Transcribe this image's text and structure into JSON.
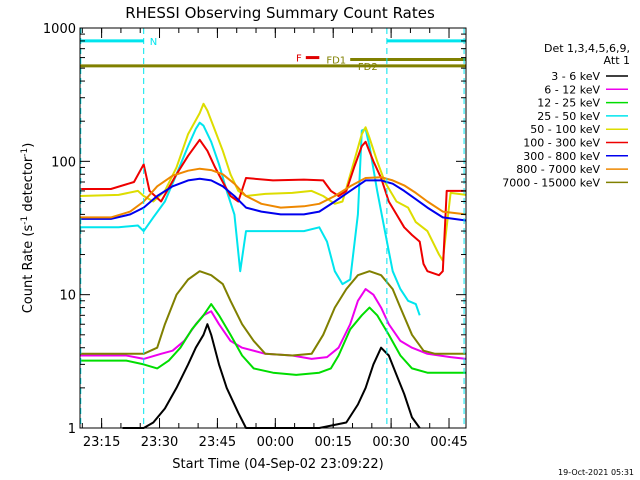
{
  "chart_data": {
    "type": "line",
    "title": "RHESSI Observing Summary Count Rates",
    "xlabel": "Start Time (04-Sep-02 23:09:22)",
    "ylabel_parts": [
      "Count Rate (s",
      "-1",
      " detector",
      "-1",
      ")"
    ],
    "ylim": [
      1,
      1000
    ],
    "y_log": true,
    "x_unit": "minutes after 04-Sep-02 23:09:22",
    "xlim": [
      0,
      100
    ],
    "y_ticks": [
      {
        "v": 1,
        "label": "1"
      },
      {
        "v": 10,
        "label": "10"
      },
      {
        "v": 100,
        "label": "100"
      },
      {
        "v": 1000,
        "label": "1000"
      }
    ],
    "x_ticks": [
      {
        "t": 5.6,
        "label": "23:15"
      },
      {
        "t": 20.6,
        "label": "23:30"
      },
      {
        "t": 35.6,
        "label": "23:45"
      },
      {
        "t": 50.6,
        "label": "00:00"
      },
      {
        "t": 65.6,
        "label": "00:15"
      },
      {
        "t": 80.6,
        "label": "00:30"
      },
      {
        "t": 95.6,
        "label": "00:45"
      }
    ],
    "legend_header": [
      "Det 1,3,4,5,6,9,",
      "Att 1"
    ],
    "legend_placement": "right",
    "flags": [
      {
        "label": "N",
        "color": "#00e5ee",
        "y": 800,
        "segments": [
          [
            0,
            16.5
          ],
          [
            79.5,
            100
          ]
        ]
      },
      {
        "label": "F",
        "color": "#e00000",
        "y": 600,
        "segments": [
          [
            58.5,
            62
          ]
        ]
      },
      {
        "label": "FD1",
        "color": "#808000",
        "y": 580,
        "segments": [
          [
            70,
            100
          ]
        ]
      },
      {
        "label": "FD2",
        "color": "#808000",
        "y": 520,
        "segments": [
          [
            0,
            100
          ]
        ]
      }
    ],
    "vlines": [
      0.2,
      16.5,
      79.5,
      99.5
    ],
    "series": [
      {
        "name": "3 - 6 keV",
        "color": "#000000",
        "points": [
          [
            11,
            1
          ],
          [
            16.5,
            1
          ],
          [
            19,
            1.1
          ],
          [
            22,
            1.4
          ],
          [
            25,
            2
          ],
          [
            28,
            3
          ],
          [
            30,
            4
          ],
          [
            32,
            5
          ],
          [
            33,
            6
          ],
          [
            34,
            5
          ],
          [
            36,
            3
          ],
          [
            38,
            2
          ],
          [
            41,
            1.3
          ],
          [
            43,
            1
          ],
          [
            62,
            1
          ],
          [
            69,
            1.1
          ],
          [
            72,
            1.5
          ],
          [
            74,
            2
          ],
          [
            76,
            3
          ],
          [
            78,
            4
          ],
          [
            80,
            3.5
          ],
          [
            82,
            2.5
          ],
          [
            84,
            1.8
          ],
          [
            86,
            1.2
          ],
          [
            88,
            1
          ]
        ]
      },
      {
        "name": "6 - 12 keV",
        "color": "#ee00ee",
        "points": [
          [
            0,
            3.5
          ],
          [
            12,
            3.5
          ],
          [
            16.5,
            3.3
          ],
          [
            21,
            3.6
          ],
          [
            24,
            3.8
          ],
          [
            27,
            4.5
          ],
          [
            30,
            6
          ],
          [
            32,
            7
          ],
          [
            34,
            7.5
          ],
          [
            36,
            6
          ],
          [
            39,
            4.5
          ],
          [
            42,
            4
          ],
          [
            48,
            3.6
          ],
          [
            55,
            3.5
          ],
          [
            60,
            3.3
          ],
          [
            64,
            3.4
          ],
          [
            67,
            4
          ],
          [
            70,
            6
          ],
          [
            72,
            9
          ],
          [
            74,
            11
          ],
          [
            76,
            10
          ],
          [
            78,
            8
          ],
          [
            80,
            6
          ],
          [
            83,
            4.5
          ],
          [
            86,
            4
          ],
          [
            90,
            3.6
          ],
          [
            96,
            3.4
          ],
          [
            100,
            3.3
          ]
        ]
      },
      {
        "name": "12 - 25 keV",
        "color": "#00dd00",
        "points": [
          [
            0,
            3.2
          ],
          [
            12,
            3.2
          ],
          [
            16.5,
            3
          ],
          [
            20,
            2.8
          ],
          [
            23,
            3.2
          ],
          [
            26,
            4
          ],
          [
            29,
            5.5
          ],
          [
            32,
            7
          ],
          [
            34,
            8.5
          ],
          [
            36,
            7
          ],
          [
            39,
            5
          ],
          [
            42,
            3.5
          ],
          [
            45,
            2.8
          ],
          [
            50,
            2.6
          ],
          [
            56,
            2.5
          ],
          [
            62,
            2.6
          ],
          [
            65,
            2.8
          ],
          [
            67,
            3.5
          ],
          [
            70,
            5.5
          ],
          [
            73,
            7
          ],
          [
            75,
            8
          ],
          [
            77,
            7
          ],
          [
            80,
            5
          ],
          [
            83,
            3.5
          ],
          [
            86,
            2.8
          ],
          [
            90,
            2.6
          ],
          [
            100,
            2.6
          ]
        ]
      },
      {
        "name": "25 - 50 keV",
        "color": "#00e5ee",
        "points": [
          [
            0,
            32
          ],
          [
            10,
            32
          ],
          [
            15,
            33
          ],
          [
            16.5,
            30
          ],
          [
            19,
            38
          ],
          [
            22,
            50
          ],
          [
            25,
            80
          ],
          [
            28,
            130
          ],
          [
            30,
            175
          ],
          [
            31,
            195
          ],
          [
            32,
            185
          ],
          [
            34,
            140
          ],
          [
            36,
            95
          ],
          [
            38,
            60
          ],
          [
            40,
            40
          ],
          [
            41.5,
            15
          ],
          [
            43,
            30
          ],
          [
            50,
            30
          ],
          [
            58,
            30
          ],
          [
            62,
            32
          ],
          [
            64,
            25
          ],
          [
            66,
            15
          ],
          [
            68,
            12
          ],
          [
            70,
            13
          ],
          [
            72,
            40
          ],
          [
            73,
            170
          ],
          [
            74,
            175
          ],
          [
            75,
            130
          ],
          [
            77,
            60
          ],
          [
            79,
            30
          ],
          [
            81,
            15
          ],
          [
            83,
            11
          ],
          [
            85,
            9
          ],
          [
            87,
            8.5
          ],
          [
            88,
            7
          ]
        ]
      },
      {
        "name": "50 - 100 keV",
        "color": "#dddd00",
        "points": [
          [
            0,
            55
          ],
          [
            10,
            56
          ],
          [
            15,
            60
          ],
          [
            16.5,
            55
          ],
          [
            19,
            50
          ],
          [
            22,
            60
          ],
          [
            25,
            90
          ],
          [
            28,
            160
          ],
          [
            31,
            230
          ],
          [
            32,
            270
          ],
          [
            33,
            240
          ],
          [
            35,
            170
          ],
          [
            37,
            120
          ],
          [
            39,
            80
          ],
          [
            41,
            60
          ],
          [
            43,
            55
          ],
          [
            48,
            57
          ],
          [
            55,
            58
          ],
          [
            60,
            60
          ],
          [
            63,
            55
          ],
          [
            66,
            48
          ],
          [
            68,
            50
          ],
          [
            71,
            100
          ],
          [
            73,
            160
          ],
          [
            74,
            180
          ],
          [
            75,
            150
          ],
          [
            77,
            100
          ],
          [
            79,
            70
          ],
          [
            82,
            50
          ],
          [
            85,
            45
          ],
          [
            87,
            35
          ],
          [
            90,
            30
          ],
          [
            93,
            20
          ],
          [
            94,
            18
          ],
          [
            96,
            58
          ],
          [
            100,
            56
          ]
        ]
      },
      {
        "name": "100 - 300 keV",
        "color": "#ee0000",
        "points": [
          [
            0,
            62
          ],
          [
            8,
            62
          ],
          [
            14,
            70
          ],
          [
            16.5,
            95
          ],
          [
            18,
            60
          ],
          [
            21,
            50
          ],
          [
            25,
            80
          ],
          [
            28,
            110
          ],
          [
            31,
            145
          ],
          [
            33,
            120
          ],
          [
            35,
            90
          ],
          [
            37,
            70
          ],
          [
            39,
            55
          ],
          [
            41,
            50
          ],
          [
            43,
            75
          ],
          [
            50,
            72
          ],
          [
            58,
            73
          ],
          [
            63,
            72
          ],
          [
            65,
            60
          ],
          [
            67,
            55
          ],
          [
            69,
            60
          ],
          [
            71,
            90
          ],
          [
            73,
            130
          ],
          [
            74,
            140
          ],
          [
            76,
            100
          ],
          [
            78,
            75
          ],
          [
            80,
            50
          ],
          [
            82,
            40
          ],
          [
            84,
            32
          ],
          [
            86,
            28
          ],
          [
            88,
            25
          ],
          [
            89,
            17
          ],
          [
            90,
            15
          ],
          [
            93,
            14
          ],
          [
            94,
            15
          ],
          [
            95,
            60
          ],
          [
            100,
            60
          ]
        ]
      },
      {
        "name": "300 - 800 keV",
        "color": "#0000ee",
        "points": [
          [
            0,
            37
          ],
          [
            8,
            37
          ],
          [
            13,
            40
          ],
          [
            16.5,
            45
          ],
          [
            20,
            55
          ],
          [
            24,
            65
          ],
          [
            28,
            72
          ],
          [
            31,
            74
          ],
          [
            34,
            72
          ],
          [
            37,
            65
          ],
          [
            40,
            55
          ],
          [
            43,
            45
          ],
          [
            47,
            42
          ],
          [
            52,
            40
          ],
          [
            58,
            40
          ],
          [
            62,
            42
          ],
          [
            66,
            50
          ],
          [
            70,
            60
          ],
          [
            74,
            72
          ],
          [
            78,
            72
          ],
          [
            81,
            68
          ],
          [
            84,
            60
          ],
          [
            87,
            52
          ],
          [
            90,
            45
          ],
          [
            94,
            38
          ],
          [
            100,
            36
          ]
        ]
      },
      {
        "name": "800 - 7000 keV",
        "color": "#ee8800",
        "points": [
          [
            0,
            38
          ],
          [
            8,
            38
          ],
          [
            13,
            42
          ],
          [
            16.5,
            50
          ],
          [
            20,
            65
          ],
          [
            24,
            78
          ],
          [
            28,
            85
          ],
          [
            31,
            88
          ],
          [
            34,
            86
          ],
          [
            37,
            80
          ],
          [
            40,
            68
          ],
          [
            43,
            55
          ],
          [
            47,
            48
          ],
          [
            52,
            45
          ],
          [
            58,
            46
          ],
          [
            62,
            48
          ],
          [
            66,
            55
          ],
          [
            70,
            65
          ],
          [
            74,
            75
          ],
          [
            78,
            76
          ],
          [
            81,
            72
          ],
          [
            84,
            66
          ],
          [
            87,
            58
          ],
          [
            90,
            50
          ],
          [
            94,
            42
          ],
          [
            100,
            40
          ]
        ]
      },
      {
        "name": "7000 - 15000 keV",
        "color": "#808000",
        "points": [
          [
            0,
            3.6
          ],
          [
            10,
            3.6
          ],
          [
            16.5,
            3.6
          ],
          [
            20,
            4
          ],
          [
            22,
            6
          ],
          [
            25,
            10
          ],
          [
            28,
            13
          ],
          [
            31,
            15
          ],
          [
            34,
            14
          ],
          [
            37,
            12
          ],
          [
            39,
            9
          ],
          [
            42,
            6
          ],
          [
            45,
            4.5
          ],
          [
            48,
            3.6
          ],
          [
            55,
            3.5
          ],
          [
            60,
            3.6
          ],
          [
            63,
            5
          ],
          [
            66,
            8
          ],
          [
            69,
            11
          ],
          [
            72,
            14
          ],
          [
            75,
            15
          ],
          [
            78,
            14
          ],
          [
            81,
            11
          ],
          [
            83,
            8
          ],
          [
            86,
            5
          ],
          [
            89,
            3.8
          ],
          [
            92,
            3.6
          ],
          [
            100,
            3.6
          ]
        ]
      }
    ]
  },
  "footer_timestamp": "19-Oct-2021 05:31"
}
